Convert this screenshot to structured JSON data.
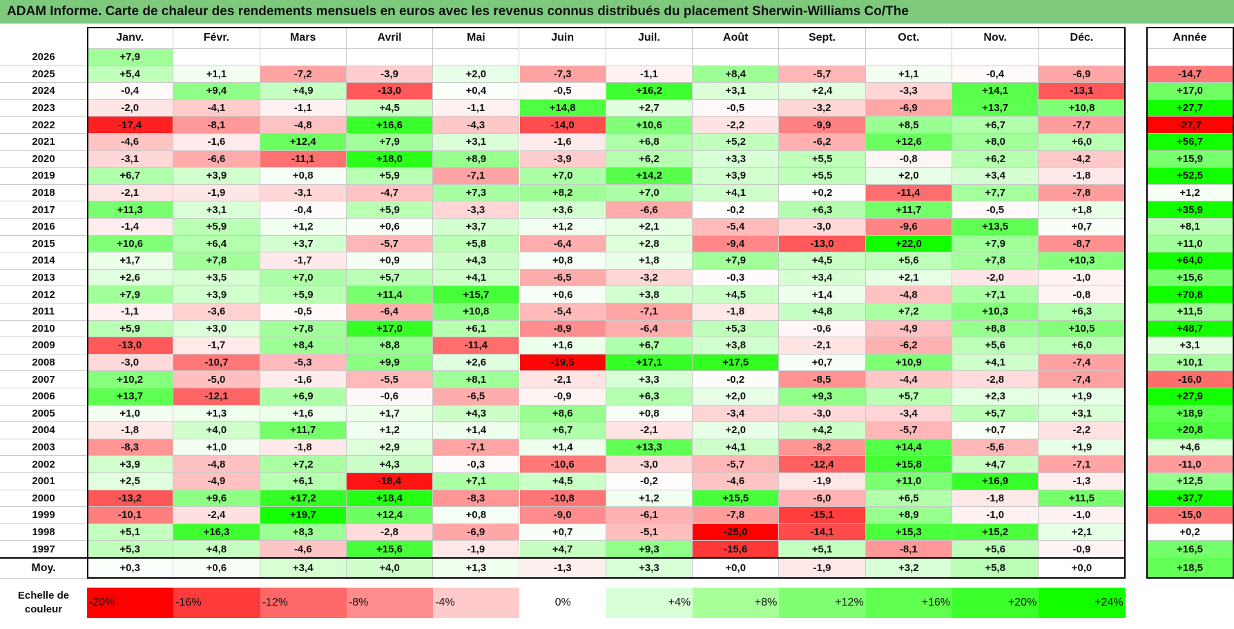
{
  "title": "ADAM Informe. Carte de chaleur des rendements mensuels en euros avec les revenus connus distribués du placement Sherwin-Williams Co/The",
  "chart_data": {
    "type": "heatmap",
    "columns": [
      "Janv.",
      "Févr.",
      "Mars",
      "Avril",
      "Mai",
      "Juin",
      "Juil.",
      "Août",
      "Sept.",
      "Oct.",
      "Nov.",
      "Déc."
    ],
    "annual_header": "Année",
    "rows": [
      {
        "year": "2026",
        "values": [
          "+7,9",
          "",
          "",
          "",
          "",
          "",
          "",
          "",
          "",
          "",
          "",
          ""
        ],
        "annual": ""
      },
      {
        "year": "2025",
        "values": [
          "+5,4",
          "+1,1",
          "-7,2",
          "-3,9",
          "+2,0",
          "-7,3",
          "-1,1",
          "+8,4",
          "-5,7",
          "+1,1",
          "-0,4",
          "-6,9"
        ],
        "annual": "-14,7"
      },
      {
        "year": "2024",
        "values": [
          "-0,4",
          "+9,4",
          "+4,9",
          "-13,0",
          "+0,4",
          "-0,5",
          "+16,2",
          "+3,1",
          "+2,4",
          "-3,3",
          "+14,1",
          "-13,1"
        ],
        "annual": "+17,0"
      },
      {
        "year": "2023",
        "values": [
          "-2,0",
          "-4,1",
          "-1,1",
          "+4,5",
          "-1,1",
          "+14,8",
          "+2,7",
          "-0,5",
          "-3,2",
          "-6,9",
          "+13,7",
          "+10,8"
        ],
        "annual": "+27,7"
      },
      {
        "year": "2022",
        "values": [
          "-17,4",
          "-8,1",
          "-4,8",
          "+16,6",
          "-4,3",
          "-14,0",
          "+10,6",
          "-2,2",
          "-9,9",
          "+8,5",
          "+6,7",
          "-7,7"
        ],
        "annual": "-27,7"
      },
      {
        "year": "2021",
        "values": [
          "-4,6",
          "-1,6",
          "+12,4",
          "+7,9",
          "+3,1",
          "-1,6",
          "+6,8",
          "+5,2",
          "-6,2",
          "+12,6",
          "+8,0",
          "+6,0"
        ],
        "annual": "+56,7"
      },
      {
        "year": "2020",
        "values": [
          "-3,1",
          "-6,6",
          "-11,1",
          "+18,0",
          "+8,9",
          "-3,9",
          "+6,2",
          "+3,3",
          "+5,5",
          "-0,8",
          "+6,2",
          "-4,2"
        ],
        "annual": "+15,9"
      },
      {
        "year": "2019",
        "values": [
          "+6,7",
          "+3,9",
          "+0,8",
          "+5,9",
          "-7,1",
          "+7,0",
          "+14,2",
          "+3,9",
          "+5,5",
          "+2,0",
          "+3,4",
          "-1,8"
        ],
        "annual": "+52,5"
      },
      {
        "year": "2018",
        "values": [
          "-2,1",
          "-1,9",
          "-3,1",
          "-4,7",
          "+7,3",
          "+8,2",
          "+7,0",
          "+4,1",
          "+0,2",
          "-11,4",
          "+7,7",
          "-7,8"
        ],
        "annual": "+1,2"
      },
      {
        "year": "2017",
        "values": [
          "+11,3",
          "+3,1",
          "-0,4",
          "+5,9",
          "-3,3",
          "+3,6",
          "-6,6",
          "-0,2",
          "+6,3",
          "+11,7",
          "-0,5",
          "+1,8"
        ],
        "annual": "+35,9"
      },
      {
        "year": "2016",
        "values": [
          "-1,4",
          "+5,9",
          "+1,2",
          "+0,6",
          "+3,7",
          "+1,2",
          "+2,1",
          "-5,4",
          "-3,0",
          "-9,6",
          "+13,5",
          "+0,7"
        ],
        "annual": "+8,1"
      },
      {
        "year": "2015",
        "values": [
          "+10,6",
          "+6,4",
          "+3,7",
          "-5,7",
          "+5,8",
          "-6,4",
          "+2,8",
          "-9,4",
          "-13,0",
          "+22,0",
          "+7,9",
          "-8,7"
        ],
        "annual": "+11,0"
      },
      {
        "year": "2014",
        "values": [
          "+1,7",
          "+7,8",
          "-1,7",
          "+0,9",
          "+4,3",
          "+0,8",
          "+1,8",
          "+7,9",
          "+4,5",
          "+5,6",
          "+7,8",
          "+10,3"
        ],
        "annual": "+64,0"
      },
      {
        "year": "2013",
        "values": [
          "+2,6",
          "+3,5",
          "+7,0",
          "+5,7",
          "+4,1",
          "-6,5",
          "-3,2",
          "-0,3",
          "+3,4",
          "+2,1",
          "-2,0",
          "-1,0"
        ],
        "annual": "+15,6"
      },
      {
        "year": "2012",
        "values": [
          "+7,9",
          "+3,9",
          "+5,9",
          "+11,4",
          "+15,7",
          "+0,6",
          "+3,8",
          "+4,5",
          "+1,4",
          "-4,8",
          "+7,1",
          "-0,8"
        ],
        "annual": "+70,8"
      },
      {
        "year": "2011",
        "values": [
          "-1,1",
          "-3,6",
          "-0,5",
          "-6,4",
          "+10,8",
          "-5,4",
          "-7,1",
          "-1,8",
          "+4,8",
          "+7,2",
          "+10,3",
          "+6,3"
        ],
        "annual": "+11,5"
      },
      {
        "year": "2010",
        "values": [
          "+5,9",
          "+3,0",
          "+7,8",
          "+17,0",
          "+6,1",
          "-8,9",
          "-6,4",
          "+5,3",
          "-0,6",
          "-4,9",
          "+8,8",
          "+10,5"
        ],
        "annual": "+48,7"
      },
      {
        "year": "2009",
        "values": [
          "-13,0",
          "-1,7",
          "+8,4",
          "+8,8",
          "-11,4",
          "+1,6",
          "+6,7",
          "+3,8",
          "-2,1",
          "-6,2",
          "+5,6",
          "+6,0"
        ],
        "annual": "+3,1"
      },
      {
        "year": "2008",
        "values": [
          "-3,0",
          "-10,7",
          "-5,3",
          "+9,9",
          "+2,6",
          "-19,5",
          "+17,1",
          "+17,5",
          "+0,7",
          "+10,9",
          "+4,1",
          "-7,4"
        ],
        "annual": "+10,1"
      },
      {
        "year": "2007",
        "values": [
          "+10,2",
          "-5,0",
          "-1,6",
          "-5,5",
          "+8,1",
          "-2,1",
          "+3,3",
          "-0,2",
          "-8,5",
          "-4,4",
          "-2,8",
          "-7,4"
        ],
        "annual": "-16,0"
      },
      {
        "year": "2006",
        "values": [
          "+13,7",
          "-12,1",
          "+6,9",
          "-0,6",
          "-6,5",
          "-0,9",
          "+6,3",
          "+2,0",
          "+9,3",
          "+5,7",
          "+2,3",
          "+1,9"
        ],
        "annual": "+27,9"
      },
      {
        "year": "2005",
        "values": [
          "+1,0",
          "+1,3",
          "+1,6",
          "+1,7",
          "+4,3",
          "+8,6",
          "+0,8",
          "-3,4",
          "-3,0",
          "-3,4",
          "+5,7",
          "+3,1"
        ],
        "annual": "+18,9"
      },
      {
        "year": "2004",
        "values": [
          "-1,8",
          "+4,0",
          "+11,7",
          "+1,2",
          "+1,4",
          "+6,7",
          "-2,1",
          "+2,0",
          "+4,2",
          "-5,7",
          "+0,7",
          "-2,2"
        ],
        "annual": "+20,8"
      },
      {
        "year": "2003",
        "values": [
          "-8,3",
          "+1,0",
          "-1,8",
          "+2,9",
          "-7,1",
          "+1,4",
          "+13,3",
          "+4,1",
          "-8,2",
          "+14,4",
          "-5,6",
          "+1,9"
        ],
        "annual": "+4,6"
      },
      {
        "year": "2002",
        "values": [
          "+3,9",
          "-4,8",
          "+7,2",
          "+4,3",
          "-0,3",
          "-10,6",
          "-3,0",
          "-5,7",
          "-12,4",
          "+15,8",
          "+4,7",
          "-7,1"
        ],
        "annual": "-11,0"
      },
      {
        "year": "2001",
        "values": [
          "+2,5",
          "-4,9",
          "+6,1",
          "-18,4",
          "+7,1",
          "+4,5",
          "-0,2",
          "-4,6",
          "-1,9",
          "+11,0",
          "+16,9",
          "-1,3"
        ],
        "annual": "+12,5"
      },
      {
        "year": "2000",
        "values": [
          "-13,2",
          "+9,6",
          "+17,2",
          "+18,4",
          "-8,3",
          "-10,8",
          "+1,2",
          "+15,5",
          "-6,0",
          "+6,5",
          "-1,8",
          "+11,5"
        ],
        "annual": "+37,7"
      },
      {
        "year": "1999",
        "values": [
          "-10,1",
          "-2,4",
          "+19,7",
          "+12,4",
          "+0,8",
          "-9,0",
          "-6,1",
          "-7,8",
          "-15,1",
          "+8,9",
          "-1,0",
          "-1,0"
        ],
        "annual": "-15,0"
      },
      {
        "year": "1998",
        "values": [
          "+5,1",
          "+16,3",
          "+8,3",
          "-2,8",
          "-6,9",
          "+0,7",
          "-5,1",
          "-25,0",
          "-14,1",
          "+15,3",
          "+15,2",
          "+2,1"
        ],
        "annual": "+0,2"
      },
      {
        "year": "1997",
        "values": [
          "+5,3",
          "+4,8",
          "-4,6",
          "+15,6",
          "-1,9",
          "+4,7",
          "+9,3",
          "-15,6",
          "+5,1",
          "-8,1",
          "+5,6",
          "-0,9"
        ],
        "annual": "+16,5"
      }
    ],
    "average": {
      "label": "Moy.",
      "values": [
        "+0,3",
        "+0,6",
        "+3,4",
        "+4,0",
        "+1,3",
        "-1,3",
        "+3,3",
        "+0,0",
        "-1,9",
        "+3,2",
        "+5,8",
        "+0,0"
      ],
      "annual": "+18,5"
    },
    "scale": {
      "label": "Echelle de couleur",
      "stops": [
        "-20%",
        "-16%",
        "-12%",
        "-8%",
        "-4%",
        "0%",
        "+4%",
        "+8%",
        "+12%",
        "+16%",
        "+20%",
        "+24%"
      ],
      "colors": [
        "#ff0000",
        "#ff3a3a",
        "#ff6868",
        "#ff8c8c",
        "#ffcaca",
        "#ffffff",
        "#d8ffd8",
        "#a8ff98",
        "#80ff72",
        "#60ff50",
        "#3cff2c",
        "#12ff00"
      ]
    }
  }
}
